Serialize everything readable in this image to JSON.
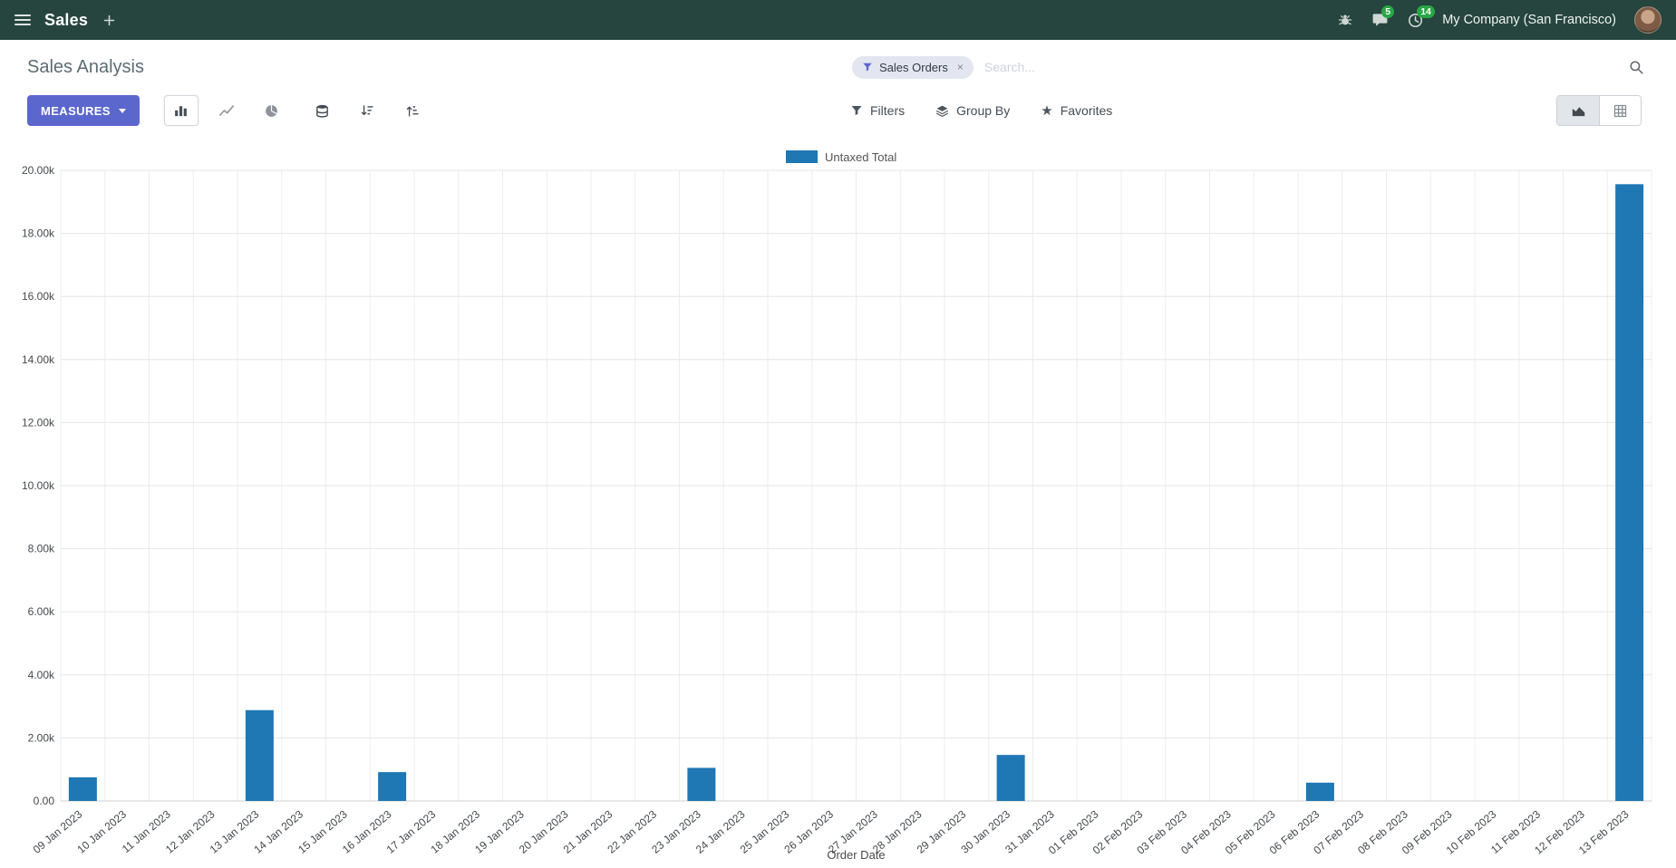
{
  "navbar": {
    "app_name": "Sales",
    "chat_badge": "5",
    "activity_badge": "14",
    "company": "My Company (San Francisco)"
  },
  "control_panel": {
    "title": "Sales Analysis",
    "measures_label": "MEASURES",
    "filters_label": "Filters",
    "group_by_label": "Group By",
    "favorites_label": "Favorites",
    "search": {
      "facet": "Sales Orders",
      "facet_remove": "×",
      "placeholder": "Search..."
    }
  },
  "icons": {
    "star": "★"
  },
  "colors": {
    "accent": "#5c67ce",
    "bar": "#1f77b4",
    "badge_green": "#28a745",
    "navbar_bg": "#26453e"
  },
  "chart_data": {
    "type": "bar",
    "title": "",
    "xlabel": "Order Date",
    "ylabel": "",
    "ylim": [
      0,
      20000
    ],
    "ytick_step": 2000,
    "grid": true,
    "legend_position": "top-center",
    "categories": [
      "09 Jan 2023",
      "10 Jan 2023",
      "11 Jan 2023",
      "12 Jan 2023",
      "13 Jan 2023",
      "14 Jan 2023",
      "15 Jan 2023",
      "16 Jan 2023",
      "17 Jan 2023",
      "18 Jan 2023",
      "19 Jan 2023",
      "20 Jan 2023",
      "21 Jan 2023",
      "22 Jan 2023",
      "23 Jan 2023",
      "24 Jan 2023",
      "25 Jan 2023",
      "26 Jan 2023",
      "27 Jan 2023",
      "28 Jan 2023",
      "29 Jan 2023",
      "30 Jan 2023",
      "31 Jan 2023",
      "01 Feb 2023",
      "02 Feb 2023",
      "03 Feb 2023",
      "04 Feb 2023",
      "05 Feb 2023",
      "06 Feb 2023",
      "07 Feb 2023",
      "08 Feb 2023",
      "09 Feb 2023",
      "10 Feb 2023",
      "11 Feb 2023",
      "12 Feb 2023",
      "13 Feb 2023"
    ],
    "series": [
      {
        "name": "Untaxed Total",
        "color": "#1f77b4",
        "values": [
          750,
          0,
          0,
          0,
          2880,
          0,
          0,
          915,
          0,
          0,
          0,
          0,
          0,
          0,
          1050,
          0,
          0,
          0,
          0,
          0,
          0,
          1460,
          0,
          0,
          0,
          0,
          0,
          0,
          580,
          0,
          0,
          0,
          0,
          0,
          0,
          19560
        ]
      }
    ]
  }
}
